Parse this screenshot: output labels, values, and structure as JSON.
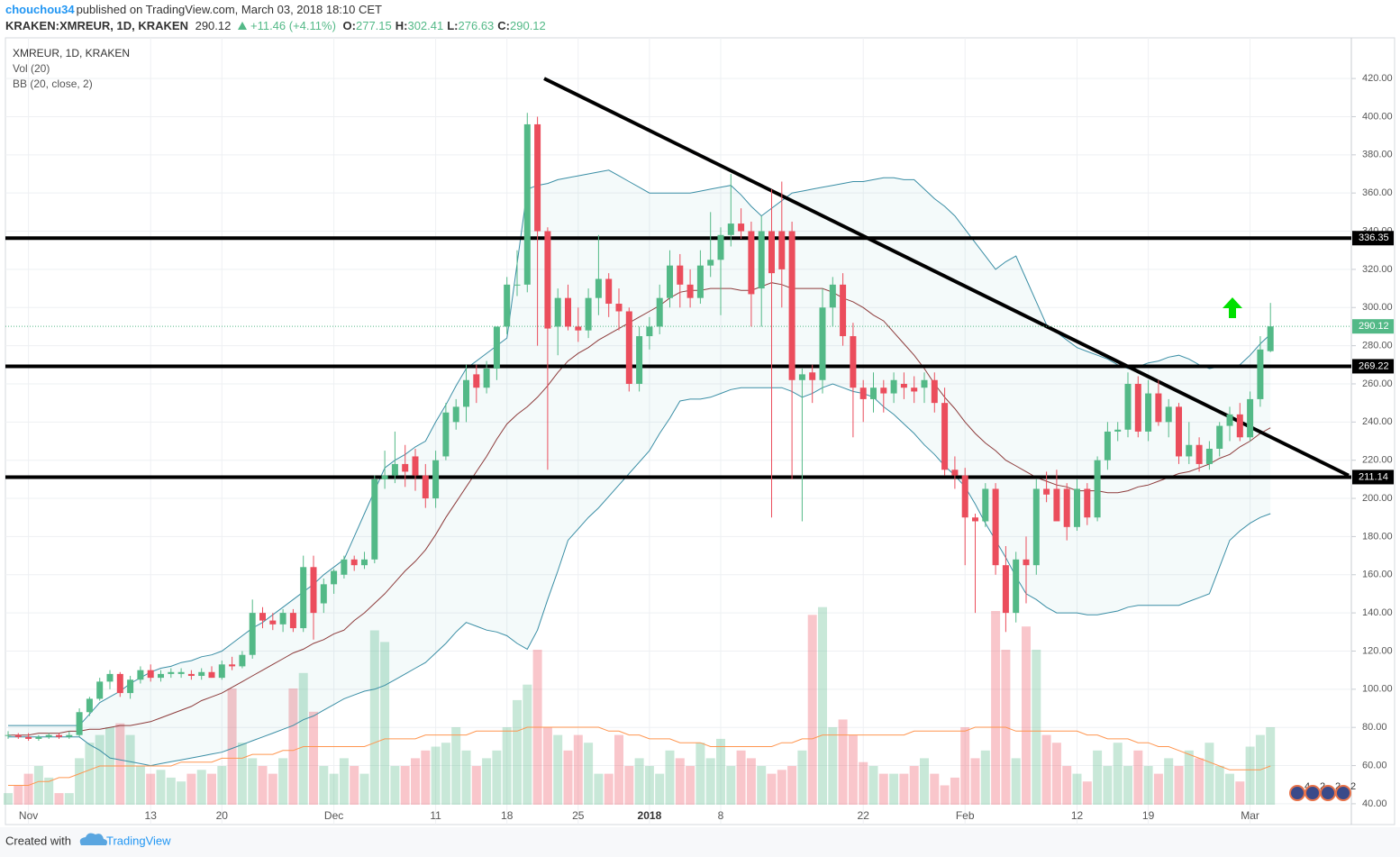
{
  "header": {
    "author": "chouchou34",
    "published": "published on TradingView.com, March 03, 2018 18:10 CET",
    "symbol": "KRAKEN:XMREUR, 1D, KRAKEN",
    "last": "290.12",
    "change": "+11.46 (+4.11%)",
    "ohlc": [
      {
        "label": "O:",
        "value": "277.15"
      },
      {
        "label": "H:",
        "value": "302.41"
      },
      {
        "label": "L:",
        "value": "276.63"
      },
      {
        "label": "C:",
        "value": "290.12"
      }
    ]
  },
  "footer": {
    "created": "Created with",
    "brand": "TradingView"
  },
  "events": [
    "4",
    "2",
    "2",
    "2"
  ],
  "chart_data": {
    "type": "candlestick",
    "title": "XMREUR, 1D, KRAKEN",
    "legend": [
      "Vol (20)",
      "BB (20, close, 2)"
    ],
    "categories": [
      null,
      null,
      "Nov",
      null,
      null,
      null,
      null,
      null,
      null,
      null,
      null,
      null,
      null,
      null,
      "13",
      null,
      null,
      null,
      null,
      null,
      null,
      "20",
      null,
      null,
      null,
      null,
      null,
      null,
      null,
      null,
      null,
      null,
      "Dec",
      null,
      null,
      null,
      null,
      null,
      null,
      null,
      null,
      null,
      "11",
      null,
      null,
      null,
      null,
      null,
      null,
      "18",
      null,
      null,
      null,
      null,
      null,
      null,
      "25",
      null,
      null,
      null,
      null,
      null,
      null,
      "2018",
      null,
      null,
      null,
      null,
      null,
      null,
      "8",
      null,
      null,
      null,
      null,
      null,
      null,
      null,
      null,
      null,
      null,
      null,
      null,
      null,
      "22",
      null,
      null,
      null,
      null,
      null,
      null,
      null,
      null,
      null,
      "Feb",
      null,
      null,
      null,
      null,
      null,
      null,
      null,
      null,
      null,
      null,
      "12",
      null,
      null,
      null,
      null,
      null,
      null,
      "19",
      null,
      null,
      null,
      null,
      null,
      null,
      null,
      null,
      null,
      "Mar",
      null,
      null
    ],
    "ohlc": [
      [
        76,
        78,
        74,
        76
      ],
      [
        76,
        77,
        74,
        75
      ],
      [
        75,
        77,
        73,
        74
      ],
      [
        74,
        76,
        73,
        75
      ],
      [
        75,
        77,
        74,
        76
      ],
      [
        76,
        77,
        74,
        75
      ],
      [
        75,
        78,
        74,
        76
      ],
      [
        76,
        90,
        75,
        88
      ],
      [
        88,
        96,
        86,
        95
      ],
      [
        95,
        106,
        94,
        104
      ],
      [
        104,
        110,
        100,
        108
      ],
      [
        108,
        109,
        96,
        98
      ],
      [
        98,
        107,
        95,
        105
      ],
      [
        105,
        112,
        103,
        110
      ],
      [
        110,
        113,
        104,
        106
      ],
      [
        106,
        110,
        104,
        108
      ],
      [
        108,
        111,
        106,
        109
      ],
      [
        108,
        111,
        106,
        109
      ],
      [
        108,
        110,
        105,
        107
      ],
      [
        107,
        111,
        105,
        109
      ],
      [
        109,
        112,
        106,
        106
      ],
      [
        106,
        115,
        105,
        113
      ],
      [
        113,
        117,
        110,
        112
      ],
      [
        112,
        120,
        111,
        118
      ],
      [
        118,
        147,
        116,
        140
      ],
      [
        140,
        143,
        132,
        136
      ],
      [
        136,
        140,
        131,
        134
      ],
      [
        134,
        142,
        130,
        140
      ],
      [
        140,
        142,
        130,
        132
      ],
      [
        132,
        170,
        130,
        164
      ],
      [
        164,
        170,
        126,
        140
      ],
      [
        145,
        158,
        140,
        155
      ],
      [
        155,
        163,
        150,
        162
      ],
      [
        160,
        170,
        158,
        168
      ],
      [
        168,
        170,
        162,
        165
      ],
      [
        165,
        172,
        163,
        168
      ],
      [
        168,
        212,
        166,
        210
      ],
      [
        210,
        225,
        205,
        212
      ],
      [
        212,
        235,
        208,
        218
      ],
      [
        218,
        228,
        206,
        214
      ],
      [
        222,
        226,
        204,
        212
      ],
      [
        212,
        218,
        195,
        200
      ],
      [
        200,
        225,
        195,
        220
      ],
      [
        222,
        250,
        220,
        245
      ],
      [
        240,
        252,
        236,
        248
      ],
      [
        248,
        270,
        240,
        262
      ],
      [
        265,
        270,
        250,
        258
      ],
      [
        258,
        272,
        255,
        268
      ],
      [
        268,
        290,
        262,
        290
      ],
      [
        290,
        316,
        286,
        312
      ],
      [
        312,
        330,
        306,
        312
      ],
      [
        312,
        402,
        308,
        396
      ],
      [
        396,
        400,
        280,
        340
      ],
      [
        340,
        342,
        215,
        289
      ],
      [
        290,
        310,
        275,
        305
      ],
      [
        305,
        312,
        288,
        290
      ],
      [
        290,
        300,
        282,
        288
      ],
      [
        288,
        310,
        284,
        305
      ],
      [
        305,
        338,
        296,
        315
      ],
      [
        315,
        318,
        295,
        302
      ],
      [
        302,
        310,
        288,
        298
      ],
      [
        298,
        300,
        256,
        260
      ],
      [
        260,
        290,
        256,
        285
      ],
      [
        285,
        295,
        278,
        290
      ],
      [
        290,
        312,
        286,
        305
      ],
      [
        305,
        330,
        300,
        322
      ],
      [
        322,
        328,
        300,
        312
      ],
      [
        312,
        320,
        300,
        305
      ],
      [
        305,
        330,
        302,
        322
      ],
      [
        322,
        350,
        316,
        325
      ],
      [
        325,
        342,
        296,
        338
      ],
      [
        338,
        370,
        332,
        344
      ],
      [
        344,
        352,
        336,
        340
      ],
      [
        340,
        345,
        290,
        307
      ],
      [
        310,
        348,
        290,
        340
      ],
      [
        340,
        362,
        190,
        318
      ],
      [
        340,
        366,
        300,
        320
      ],
      [
        340,
        345,
        210,
        262
      ],
      [
        262,
        268,
        188,
        265
      ],
      [
        266,
        270,
        250,
        262
      ],
      [
        262,
        310,
        255,
        300
      ],
      [
        300,
        316,
        290,
        312
      ],
      [
        312,
        318,
        280,
        285
      ],
      [
        285,
        292,
        232,
        258
      ],
      [
        258,
        262,
        240,
        252
      ],
      [
        252,
        266,
        245,
        258
      ],
      [
        258,
        262,
        245,
        255
      ],
      [
        255,
        266,
        250,
        262
      ],
      [
        260,
        266,
        252,
        258
      ],
      [
        258,
        264,
        250,
        256
      ],
      [
        258,
        266,
        250,
        262
      ],
      [
        262,
        266,
        245,
        250
      ],
      [
        250,
        258,
        212,
        215
      ],
      [
        215,
        222,
        205,
        212
      ],
      [
        212,
        216,
        165,
        190
      ],
      [
        190,
        192,
        140,
        188
      ],
      [
        188,
        208,
        185,
        205
      ],
      [
        205,
        208,
        160,
        165
      ],
      [
        165,
        175,
        130,
        140
      ],
      [
        140,
        172,
        135,
        168
      ],
      [
        168,
        180,
        145,
        165
      ],
      [
        165,
        210,
        160,
        205
      ],
      [
        205,
        214,
        198,
        202
      ],
      [
        205,
        215,
        190,
        188
      ],
      [
        205,
        208,
        178,
        185
      ],
      [
        185,
        210,
        183,
        205
      ],
      [
        205,
        208,
        186,
        190
      ],
      [
        190,
        222,
        188,
        220
      ],
      [
        220,
        240,
        215,
        235
      ],
      [
        235,
        240,
        230,
        236
      ],
      [
        236,
        266,
        232,
        260
      ],
      [
        260,
        264,
        232,
        235
      ],
      [
        235,
        262,
        230,
        255
      ],
      [
        255,
        262,
        238,
        240
      ],
      [
        240,
        252,
        232,
        248
      ],
      [
        248,
        250,
        218,
        222
      ],
      [
        222,
        240,
        218,
        228
      ],
      [
        228,
        232,
        214,
        218
      ],
      [
        218,
        230,
        215,
        226
      ],
      [
        226,
        240,
        222,
        238
      ],
      [
        238,
        248,
        230,
        244
      ],
      [
        244,
        250,
        230,
        232
      ],
      [
        232,
        256,
        230,
        252
      ],
      [
        252,
        285,
        248,
        278
      ],
      [
        277.15,
        302.41,
        276.63,
        290.12
      ]
    ],
    "volume": [
      3,
      5,
      8,
      10,
      7,
      3,
      3,
      12,
      16,
      18,
      20,
      21,
      18,
      10,
      8,
      9,
      7,
      6,
      8,
      9,
      8,
      10,
      30,
      16,
      12,
      10,
      8,
      12,
      30,
      34,
      24,
      10,
      8,
      12,
      10,
      8,
      45,
      42,
      10,
      10,
      12,
      14,
      15,
      16,
      20,
      14,
      10,
      12,
      14,
      20,
      27,
      31,
      40,
      20,
      18,
      14,
      18,
      16,
      8,
      8,
      18,
      10,
      12,
      10,
      8,
      14,
      12,
      10,
      16,
      12,
      17,
      10,
      14,
      12,
      10,
      8,
      9,
      10,
      14,
      49,
      51,
      20,
      22,
      18,
      11,
      10,
      8,
      8,
      8,
      10,
      12,
      8,
      5,
      7,
      20,
      12,
      14,
      50,
      40,
      12,
      46,
      40,
      18,
      16,
      10,
      8,
      6,
      14,
      10,
      16,
      10,
      14,
      10,
      8,
      12,
      10,
      14,
      12,
      16,
      10,
      8,
      6,
      15,
      18,
      20
    ],
    "volume_ma": [
      5,
      5,
      5,
      6,
      6,
      7,
      7,
      8,
      9,
      10,
      10,
      10,
      10,
      10,
      10,
      10,
      10,
      11,
      11,
      11,
      11,
      12,
      12,
      12,
      13,
      13,
      13,
      14,
      14,
      15,
      15,
      15,
      15,
      15,
      15,
      15,
      16,
      17,
      17,
      17,
      17,
      18,
      18,
      18,
      18,
      18,
      19,
      19,
      19,
      19,
      19,
      20,
      20,
      20,
      20,
      20,
      20,
      20,
      20,
      19,
      19,
      18,
      18,
      17,
      17,
      17,
      16,
      16,
      16,
      15,
      15,
      15,
      15,
      15,
      15,
      15,
      16,
      16,
      17,
      17,
      18,
      18,
      18,
      18,
      18,
      18,
      18,
      18,
      18,
      19,
      19,
      19,
      19,
      19,
      19,
      20,
      20,
      20,
      20,
      19,
      19,
      19,
      19,
      19,
      19,
      19,
      18,
      18,
      17,
      17,
      17,
      16,
      16,
      15,
      15,
      14,
      13,
      12,
      11,
      10,
      9,
      9,
      9,
      9,
      10
    ],
    "volume_ylim": [
      0,
      100
    ],
    "bb": {
      "upper": [
        81,
        81,
        81,
        81,
        81,
        81,
        81,
        81,
        87,
        93,
        96,
        99,
        103,
        106,
        109,
        111,
        112,
        114,
        115,
        117,
        118,
        120,
        124,
        128,
        132,
        135,
        139,
        143,
        147,
        151,
        155,
        160,
        164,
        168,
        180,
        192,
        204,
        216,
        220,
        223,
        227,
        230,
        240,
        249,
        259,
        268,
        272,
        276,
        280,
        284,
        323,
        362,
        364,
        365,
        367,
        368,
        369,
        370,
        371,
        372,
        369,
        366,
        363,
        360,
        360,
        360,
        360,
        360,
        361,
        362,
        363,
        364,
        359,
        353,
        348,
        352,
        356,
        360,
        361,
        362,
        363,
        364,
        365,
        366,
        366,
        367,
        368,
        368,
        367,
        367,
        362,
        357,
        353,
        348,
        341,
        334,
        327,
        320,
        324,
        327,
        315,
        303,
        291,
        287,
        283,
        279,
        277,
        275,
        273,
        270,
        268,
        269,
        271,
        272,
        274,
        275,
        273,
        270,
        268,
        269,
        269,
        270,
        275,
        281,
        286
      ],
      "middle": [
        76,
        76,
        76,
        77,
        77,
        77,
        78,
        78,
        79,
        79,
        80,
        81,
        81,
        82,
        83,
        85,
        87,
        89,
        91,
        94,
        96,
        98,
        101,
        104,
        107,
        110,
        113,
        116,
        119,
        121,
        124,
        126,
        129,
        131,
        136,
        140,
        145,
        150,
        156,
        162,
        167,
        173,
        181,
        190,
        198,
        206,
        214,
        222,
        231,
        239,
        244,
        248,
        253,
        259,
        266,
        272,
        276,
        279,
        283,
        286,
        289,
        292,
        295,
        298,
        301,
        305,
        308,
        309,
        309,
        310,
        310,
        310,
        309,
        309,
        311,
        313,
        312,
        310,
        310,
        310,
        310,
        308,
        305,
        303,
        300,
        296,
        293,
        287,
        281,
        275,
        268,
        260,
        253,
        247,
        240,
        234,
        229,
        225,
        220,
        217,
        214,
        211,
        209,
        207,
        206,
        204,
        204,
        204,
        203,
        203,
        204,
        206,
        207,
        209,
        211,
        213,
        214,
        216,
        218,
        221,
        223,
        227,
        230,
        234,
        237
      ],
      "lower": [
        75,
        75,
        75,
        75,
        75,
        75,
        75,
        75,
        71,
        68,
        64,
        63,
        62,
        61,
        60,
        61,
        62,
        63,
        64,
        65,
        66,
        67,
        69,
        71,
        73,
        75,
        77,
        79,
        81,
        84,
        86,
        89,
        92,
        95,
        97,
        99,
        100,
        102,
        105,
        108,
        111,
        114,
        119,
        124,
        130,
        135,
        133,
        131,
        130,
        128,
        124,
        121,
        131,
        147,
        162,
        178,
        184,
        190,
        195,
        201,
        207,
        213,
        219,
        225,
        234,
        242,
        251,
        252,
        252,
        253,
        255,
        257,
        258,
        258,
        258,
        258,
        258,
        256,
        253,
        255,
        258,
        260,
        258,
        256,
        255,
        253,
        248,
        244,
        239,
        234,
        228,
        223,
        217,
        212,
        206,
        197,
        187,
        178,
        169,
        159,
        150,
        147,
        143,
        140,
        140,
        140,
        139,
        139,
        140,
        141,
        143,
        144,
        144,
        144,
        144,
        144,
        146,
        148,
        150,
        164,
        178,
        183,
        187,
        190,
        192
      ]
    },
    "hlines": [
      336.35,
      269.22,
      211.14
    ],
    "trendline": [
      420,
      212
    ],
    "last_price": 290.12,
    "ylim": [
      29.1,
      441.3
    ],
    "yticks": [
      {
        "value": 40,
        "label": "40.00"
      },
      {
        "value": 60,
        "label": "60.00"
      },
      {
        "value": 80,
        "label": "80.00"
      },
      {
        "value": 100,
        "label": "100.00"
      },
      {
        "value": 120,
        "label": "120.00"
      },
      {
        "value": 140,
        "label": "140.00"
      },
      {
        "value": 160,
        "label": "160.00"
      },
      {
        "value": 180,
        "label": "180.00"
      },
      {
        "value": 200,
        "label": "200.00"
      },
      {
        "value": 220,
        "label": "220.00"
      },
      {
        "value": 240,
        "label": "240.00"
      },
      {
        "value": 260,
        "label": "260.00"
      },
      {
        "value": 280,
        "label": "280.00"
      },
      {
        "value": 300,
        "label": "300.00"
      },
      {
        "value": 320,
        "label": "320.00"
      },
      {
        "value": 340,
        "label": "340.00"
      },
      {
        "value": 360,
        "label": "360.00"
      },
      {
        "value": 380,
        "label": "380.00"
      },
      {
        "value": 400,
        "label": "400.00"
      },
      {
        "value": 420,
        "label": "420.00"
      }
    ],
    "grid": true,
    "colors": {
      "up": "#53b987",
      "down": "#eb4d5c",
      "band": "#3a8ea5",
      "mid": "#8d3b3b",
      "vol_ma": "#ff9650"
    }
  }
}
